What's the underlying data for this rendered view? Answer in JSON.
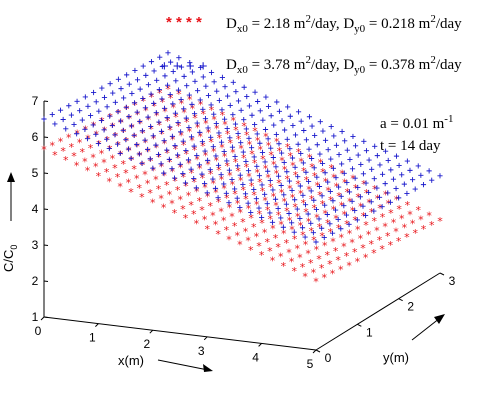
{
  "chart_data": {
    "type": "scatter",
    "projection": "3d",
    "xlabel": "x(m)",
    "ylabel": "y(m)",
    "zlabel_main": "C/C",
    "zlabel_sub": "0",
    "xlim": [
      0,
      5
    ],
    "ylim": [
      0,
      3
    ],
    "zlim": [
      1,
      7
    ],
    "x_ticks": [
      "0",
      "1",
      "2",
      "3",
      "4",
      "5"
    ],
    "y_ticks": [
      "0",
      "1",
      "2",
      "3"
    ],
    "z_ticks": [
      "1",
      "2",
      "3",
      "4",
      "5",
      "6",
      "7"
    ],
    "grid": false,
    "legend_position": "top",
    "annotation": {
      "a_main": "a = 0.01 m",
      "a_sup": "-1",
      "t_text": "t = 14 day"
    },
    "series": [
      {
        "marker": "* * * *",
        "color": "#e8141a",
        "legend": {
          "p1": "D",
          "s1": "x0",
          "p2": " = 2.18 m",
          "sup1": "2",
          "p3": "/day, D",
          "s2": "y0",
          "p4": " = 0.218 m",
          "sup2": "2",
          "p5": "/day"
        },
        "surface": {
          "c0": 5.65,
          "cx": -0.55,
          "cy": -0.15
        }
      },
      {
        "marker": "+ + + +",
        "color": "#1a1acc",
        "legend": {
          "p1": "D",
          "s1": "x0",
          "p2": " = 3.78 m",
          "sup1": "2",
          "p3": "/day, D",
          "s2": "y0",
          "p4": " = 0.378 m",
          "sup2": "2",
          "p5": "/day"
        },
        "surface": {
          "c0": 6.5,
          "cx": -0.5,
          "cy": -0.1
        }
      }
    ]
  }
}
